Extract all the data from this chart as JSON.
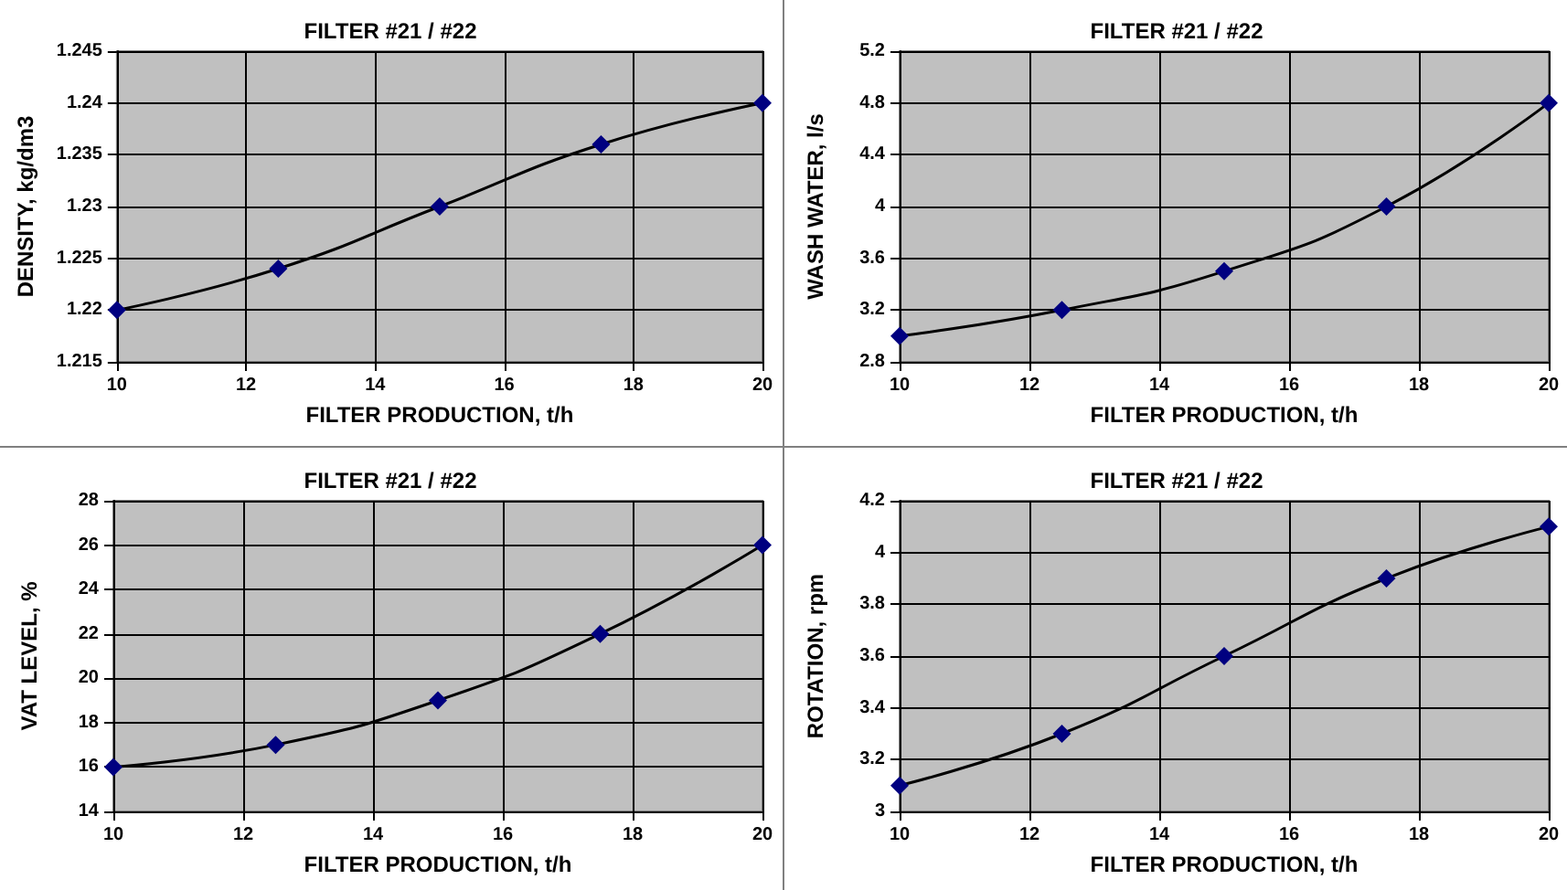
{
  "chart_data": [
    {
      "type": "line",
      "title": "FILTER #21 / #22",
      "xlabel": "FILTER PRODUCTION, t/h",
      "ylabel": "DENSITY, kg/dm3",
      "x": [
        10,
        12.5,
        15,
        17.5,
        20
      ],
      "series": [
        {
          "color": "#000080",
          "values": [
            1.22,
            1.224,
            1.23,
            1.236,
            1.24
          ]
        }
      ],
      "xlim": [
        10,
        20
      ],
      "xticks": [
        10,
        12,
        14,
        16,
        18,
        20
      ],
      "ylim": [
        1.215,
        1.245
      ],
      "yticks": [
        1.215,
        1.22,
        1.225,
        1.23,
        1.235,
        1.24,
        1.245
      ],
      "grid": true,
      "marker": "diamond",
      "line_style": "solid"
    },
    {
      "type": "line",
      "title": "FILTER #21 / #22",
      "xlabel": "FILTER PRODUCTION, t/h",
      "ylabel": "WASH WATER, l/s",
      "x": [
        10,
        12.5,
        15,
        17.5,
        20
      ],
      "series": [
        {
          "color": "#000080",
          "values": [
            3.0,
            3.2,
            3.5,
            4.0,
            4.8
          ]
        }
      ],
      "xlim": [
        10,
        20
      ],
      "xticks": [
        10,
        12,
        14,
        16,
        18,
        20
      ],
      "ylim": [
        2.8,
        5.2
      ],
      "yticks": [
        2.8,
        3.2,
        3.6,
        4,
        4.4,
        4.8,
        5.2
      ],
      "grid": true,
      "marker": "diamond",
      "line_style": "solid"
    },
    {
      "type": "line",
      "title": "FILTER #21 / #22",
      "xlabel": "FILTER PRODUCTION, t/h",
      "ylabel": "VAT LEVEL, %",
      "x": [
        10,
        12.5,
        15,
        17.5,
        20
      ],
      "series": [
        {
          "color": "#000080",
          "values": [
            16,
            17,
            19,
            22,
            26
          ]
        }
      ],
      "xlim": [
        10,
        20
      ],
      "xticks": [
        10,
        12,
        14,
        16,
        18,
        20
      ],
      "ylim": [
        14,
        28
      ],
      "yticks": [
        14,
        16,
        18,
        20,
        22,
        24,
        26,
        28
      ],
      "grid": true,
      "marker": "diamond",
      "line_style": "solid"
    },
    {
      "type": "line",
      "title": "FILTER #21 / #22",
      "xlabel": "FILTER PRODUCTION, t/h",
      "ylabel": "ROTATION, rpm",
      "x": [
        10,
        12.5,
        15,
        17.5,
        20
      ],
      "series": [
        {
          "color": "#000080",
          "values": [
            3.1,
            3.3,
            3.6,
            3.9,
            4.1
          ]
        }
      ],
      "xlim": [
        10,
        20
      ],
      "xticks": [
        10,
        12,
        14,
        16,
        18,
        20
      ],
      "ylim": [
        3,
        4.2
      ],
      "yticks": [
        3,
        3.2,
        3.4,
        3.6,
        3.8,
        4,
        4.2
      ],
      "grid": true,
      "marker": "diamond",
      "line_style": "solid"
    }
  ]
}
